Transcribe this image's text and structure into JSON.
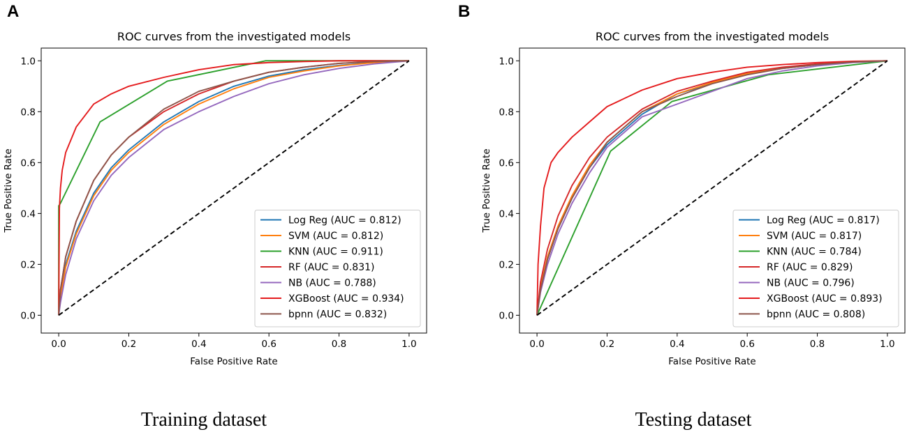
{
  "panels": [
    {
      "letter": "A",
      "caption": "Training dataset"
    },
    {
      "letter": "B",
      "caption": "Testing dataset"
    }
  ],
  "chart_data": [
    {
      "type": "line",
      "title": "ROC curves from the investigated models",
      "xlabel": "False Positive Rate",
      "ylabel": "True Positive Rate",
      "xlim": [
        -0.05,
        1.05
      ],
      "ylim": [
        -0.07,
        1.05
      ],
      "xticks": [
        "0.0",
        "0.2",
        "0.4",
        "0.6",
        "0.8",
        "1.0"
      ],
      "yticks": [
        "0.0",
        "0.2",
        "0.4",
        "0.6",
        "0.8",
        "1.0"
      ],
      "legend_position": "lower-right",
      "diagonal": {
        "x": [
          0,
          1
        ],
        "y": [
          0,
          1
        ],
        "style": "dashed",
        "color": "#000000"
      },
      "series": [
        {
          "name": "Log Reg (AUC = 0.812)",
          "color": "#1f77b4",
          "x": [
            0,
            0.005,
            0.02,
            0.05,
            0.1,
            0.15,
            0.2,
            0.3,
            0.4,
            0.5,
            0.6,
            0.7,
            0.8,
            0.9,
            1.0
          ],
          "y": [
            0,
            0.08,
            0.2,
            0.33,
            0.48,
            0.58,
            0.65,
            0.76,
            0.84,
            0.9,
            0.94,
            0.965,
            0.982,
            0.994,
            1.0
          ]
        },
        {
          "name": "SVM (AUC = 0.812)",
          "color": "#ff7f0e",
          "x": [
            0,
            0.005,
            0.02,
            0.05,
            0.1,
            0.15,
            0.2,
            0.3,
            0.4,
            0.5,
            0.6,
            0.7,
            0.8,
            0.9,
            1.0
          ],
          "y": [
            0,
            0.07,
            0.19,
            0.32,
            0.47,
            0.57,
            0.64,
            0.75,
            0.83,
            0.89,
            0.935,
            0.96,
            0.98,
            0.993,
            1.0
          ]
        },
        {
          "name": "KNN (AUC = 0.911)",
          "color": "#2ca02c",
          "x": [
            0,
            0,
            0.005,
            0.118,
            0.31,
            0.59,
            1.0
          ],
          "y": [
            0,
            0.43,
            0.44,
            0.76,
            0.92,
            1.0,
            1.0
          ]
        },
        {
          "name": "RF (AUC = 0.831)",
          "color": "#d62728",
          "x": [
            0,
            0.005,
            0.02,
            0.05,
            0.1,
            0.15,
            0.2,
            0.3,
            0.4,
            0.5,
            0.6,
            0.7,
            0.8,
            0.9,
            1.0
          ],
          "y": [
            0,
            0.1,
            0.23,
            0.37,
            0.53,
            0.63,
            0.7,
            0.8,
            0.87,
            0.92,
            0.955,
            0.975,
            0.99,
            0.997,
            1.0
          ]
        },
        {
          "name": "NB (AUC = 0.788)",
          "color": "#9467bd",
          "x": [
            0,
            0.005,
            0.02,
            0.05,
            0.1,
            0.15,
            0.2,
            0.3,
            0.4,
            0.5,
            0.6,
            0.7,
            0.8,
            0.9,
            1.0
          ],
          "y": [
            0,
            0.05,
            0.16,
            0.3,
            0.45,
            0.55,
            0.62,
            0.73,
            0.8,
            0.86,
            0.91,
            0.945,
            0.97,
            0.988,
            1.0
          ]
        },
        {
          "name": "XGBoost (AUC = 0.934)",
          "color": "#e41a1c",
          "x": [
            0,
            0.002,
            0.005,
            0.01,
            0.02,
            0.05,
            0.1,
            0.15,
            0.2,
            0.3,
            0.4,
            0.5,
            0.6,
            0.7,
            0.8,
            1.0
          ],
          "y": [
            0,
            0.42,
            0.5,
            0.57,
            0.64,
            0.74,
            0.83,
            0.87,
            0.9,
            0.935,
            0.965,
            0.985,
            0.993,
            0.997,
            1.0,
            1.0
          ]
        },
        {
          "name": "bpnn (AUC = 0.832)",
          "color": "#8c564b",
          "x": [
            0,
            0.005,
            0.02,
            0.05,
            0.1,
            0.15,
            0.2,
            0.3,
            0.4,
            0.5,
            0.6,
            0.7,
            0.8,
            0.9,
            1.0
          ],
          "y": [
            0,
            0.1,
            0.23,
            0.37,
            0.53,
            0.63,
            0.7,
            0.81,
            0.88,
            0.92,
            0.955,
            0.975,
            0.99,
            0.997,
            1.0
          ]
        }
      ]
    },
    {
      "type": "line",
      "title": "ROC curves from the investigated models",
      "xlabel": "False Positive Rate",
      "ylabel": "True Positive Rate",
      "xlim": [
        -0.05,
        1.05
      ],
      "ylim": [
        -0.07,
        1.05
      ],
      "xticks": [
        "0.0",
        "0.2",
        "0.4",
        "0.6",
        "0.8",
        "1.0"
      ],
      "yticks": [
        "0.0",
        "0.2",
        "0.4",
        "0.6",
        "0.8",
        "1.0"
      ],
      "legend_position": "lower-right",
      "diagonal": {
        "x": [
          0,
          1
        ],
        "y": [
          0,
          1
        ],
        "style": "dashed",
        "color": "#000000"
      },
      "series": [
        {
          "name": "Log Reg (AUC = 0.817)",
          "color": "#1f77b4",
          "x": [
            0,
            0.01,
            0.03,
            0.06,
            0.1,
            0.15,
            0.2,
            0.3,
            0.4,
            0.5,
            0.6,
            0.7,
            0.8,
            0.9,
            1.0
          ],
          "y": [
            0,
            0.1,
            0.22,
            0.34,
            0.46,
            0.58,
            0.67,
            0.79,
            0.87,
            0.91,
            0.95,
            0.97,
            0.985,
            0.995,
            1.0
          ]
        },
        {
          "name": "SVM  (AUC = 0.817)",
          "color": "#ff7f0e",
          "x": [
            0,
            0.01,
            0.03,
            0.06,
            0.1,
            0.15,
            0.2,
            0.3,
            0.4,
            0.5,
            0.6,
            0.7,
            0.8,
            0.9,
            1.0
          ],
          "y": [
            0,
            0.11,
            0.23,
            0.35,
            0.47,
            0.59,
            0.68,
            0.8,
            0.87,
            0.915,
            0.95,
            0.97,
            0.985,
            0.995,
            1.0
          ]
        },
        {
          "name": "KNN (AUC = 0.784)",
          "color": "#2ca02c",
          "x": [
            0,
            0.21,
            0.385,
            0.66,
            1.0
          ],
          "y": [
            0,
            0.645,
            0.84,
            0.945,
            1.0
          ]
        },
        {
          "name": "RF (AUC = 0.829)",
          "color": "#d62728",
          "x": [
            0,
            0.01,
            0.03,
            0.06,
            0.1,
            0.15,
            0.2,
            0.3,
            0.4,
            0.5,
            0.6,
            0.7,
            0.8,
            0.9,
            1.0
          ],
          "y": [
            0,
            0.13,
            0.26,
            0.39,
            0.51,
            0.62,
            0.7,
            0.81,
            0.88,
            0.92,
            0.955,
            0.975,
            0.988,
            0.996,
            1.0
          ]
        },
        {
          "name": "NB (AUC = 0.796)",
          "color": "#9467bd",
          "x": [
            0,
            0.01,
            0.03,
            0.06,
            0.1,
            0.15,
            0.2,
            0.3,
            0.4,
            0.5,
            0.6,
            0.7,
            0.8,
            0.9,
            1.0
          ],
          "y": [
            0,
            0.09,
            0.2,
            0.32,
            0.44,
            0.56,
            0.66,
            0.78,
            0.83,
            0.88,
            0.93,
            0.96,
            0.98,
            0.993,
            1.0
          ]
        },
        {
          "name": "XGBoost (AUC = 0.893)",
          "color": "#e41a1c",
          "x": [
            0,
            0.003,
            0.01,
            0.02,
            0.04,
            0.06,
            0.1,
            0.15,
            0.2,
            0.3,
            0.4,
            0.5,
            0.6,
            0.7,
            0.8,
            0.9,
            1.0
          ],
          "y": [
            0,
            0.2,
            0.35,
            0.5,
            0.6,
            0.64,
            0.7,
            0.76,
            0.82,
            0.885,
            0.93,
            0.955,
            0.975,
            0.985,
            0.993,
            0.998,
            1.0
          ]
        },
        {
          "name": "bpnn (AUC = 0.808)",
          "color": "#8c564b",
          "x": [
            0,
            0.01,
            0.03,
            0.06,
            0.1,
            0.15,
            0.2,
            0.3,
            0.4,
            0.5,
            0.6,
            0.7,
            0.8,
            0.9,
            1.0
          ],
          "y": [
            0,
            0.1,
            0.22,
            0.34,
            0.46,
            0.58,
            0.68,
            0.8,
            0.86,
            0.91,
            0.945,
            0.97,
            0.985,
            0.995,
            1.0
          ]
        }
      ]
    }
  ]
}
